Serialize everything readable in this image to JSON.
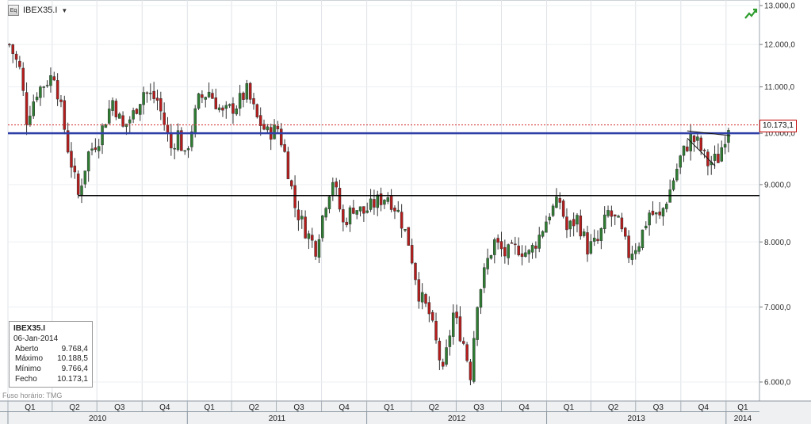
{
  "toolbar": {
    "icon": "chart-type-icon",
    "symbol": "IBEX35.I",
    "dropdown_glyph": "▼",
    "trend_icon": "trend-up-icon"
  },
  "info_box": {
    "title": "IBEX35.I",
    "date": "06-Jan-2014",
    "rows": [
      {
        "label": "Aberto",
        "value": "9.768,4"
      },
      {
        "label": "Máximo",
        "value": "10.188,5"
      },
      {
        "label": "Mínimo",
        "value": "9.766,4"
      },
      {
        "label": "Fecho",
        "value": "10.173,1"
      }
    ]
  },
  "timezone_label": "Fuso horário: TMG",
  "colors": {
    "up": "#2e7d32",
    "down": "#b71c1c",
    "resistance": "#2f3fa8",
    "support": "#000000",
    "last_price_line": "#d32f2f"
  },
  "chart_data": {
    "type": "candlestick",
    "symbol": "IBEX35.I",
    "interval": "weekly",
    "y_scale": "log",
    "ylim": [
      5900,
      13000
    ],
    "y_ticks": [
      {
        "value": 13000,
        "label": "13.000,0"
      },
      {
        "value": 12000,
        "label": "12.000,0"
      },
      {
        "value": 11000,
        "label": "11.000,0"
      },
      {
        "value": 10000,
        "label": "10.000,0"
      },
      {
        "value": 9000,
        "label": "9.000,0"
      },
      {
        "value": 8000,
        "label": "8.000,0"
      },
      {
        "value": 7000,
        "label": "7.000,0"
      },
      {
        "value": 6000,
        "label": "6.000,0"
      }
    ],
    "x_start": "2010-01-01",
    "x_end": "2014-03-10",
    "quarters": [
      {
        "label": "Q1",
        "date": "2010-01-01"
      },
      {
        "label": "Q2",
        "date": "2010-04-01"
      },
      {
        "label": "Q3",
        "date": "2010-07-01"
      },
      {
        "label": "Q4",
        "date": "2010-10-01"
      },
      {
        "label": "Q1",
        "date": "2011-01-01"
      },
      {
        "label": "Q2",
        "date": "2011-04-01"
      },
      {
        "label": "Q3",
        "date": "2011-07-01"
      },
      {
        "label": "Q4",
        "date": "2011-10-01"
      },
      {
        "label": "Q1",
        "date": "2012-01-01"
      },
      {
        "label": "Q2",
        "date": "2012-04-01"
      },
      {
        "label": "Q3",
        "date": "2012-07-01"
      },
      {
        "label": "Q4",
        "date": "2012-10-01"
      },
      {
        "label": "Q1",
        "date": "2013-01-01"
      },
      {
        "label": "Q2",
        "date": "2013-04-01"
      },
      {
        "label": "Q3",
        "date": "2013-07-01"
      },
      {
        "label": "Q4",
        "date": "2013-10-01"
      },
      {
        "label": "Q1",
        "date": "2014-01-01"
      }
    ],
    "years": [
      {
        "label": "2010",
        "start": "2010-01-01",
        "end": "2011-01-01"
      },
      {
        "label": "2011",
        "start": "2011-01-01",
        "end": "2012-01-01"
      },
      {
        "label": "2012",
        "start": "2012-01-01",
        "end": "2013-01-01"
      },
      {
        "label": "2013",
        "start": "2013-01-01",
        "end": "2014-01-01"
      },
      {
        "label": "2014",
        "start": "2014-01-01",
        "end": "2014-03-10"
      }
    ],
    "anchors": [
      [
        "2010-01-04",
        12000
      ],
      [
        "2010-01-25",
        11400
      ],
      [
        "2010-02-08",
        10300
      ],
      [
        "2010-03-01",
        10900
      ],
      [
        "2010-04-05",
        11300
      ],
      [
        "2010-05-03",
        9700
      ],
      [
        "2010-05-24",
        8800
      ],
      [
        "2010-06-14",
        9600
      ],
      [
        "2010-07-05",
        9900
      ],
      [
        "2010-08-02",
        10700
      ],
      [
        "2010-08-23",
        10100
      ],
      [
        "2010-09-13",
        10400
      ],
      [
        "2010-10-04",
        10900
      ],
      [
        "2010-11-01",
        10700
      ],
      [
        "2010-11-29",
        9700
      ],
      [
        "2010-12-13",
        10000
      ],
      [
        "2010-12-27",
        9500
      ],
      [
        "2011-01-24",
        10700
      ],
      [
        "2011-02-14",
        10900
      ],
      [
        "2011-03-14",
        10400
      ],
      [
        "2011-04-11",
        10600
      ],
      [
        "2011-05-02",
        10900
      ],
      [
        "2011-05-23",
        10300
      ],
      [
        "2011-06-13",
        10000
      ],
      [
        "2011-07-04",
        10100
      ],
      [
        "2011-07-18",
        9600
      ],
      [
        "2011-08-08",
        8600
      ],
      [
        "2011-08-29",
        8200
      ],
      [
        "2011-09-19",
        7900
      ],
      [
        "2011-10-10",
        8700
      ],
      [
        "2011-10-24",
        9100
      ],
      [
        "2011-11-14",
        8300
      ],
      [
        "2011-12-05",
        8600
      ],
      [
        "2011-12-26",
        8500
      ],
      [
        "2012-01-23",
        8700
      ],
      [
        "2012-02-13",
        8800
      ],
      [
        "2012-03-05",
        8500
      ],
      [
        "2012-03-26",
        8000
      ],
      [
        "2012-04-16",
        7200
      ],
      [
        "2012-05-07",
        6900
      ],
      [
        "2012-06-04",
        6100
      ],
      [
        "2012-06-25",
        6900
      ],
      [
        "2012-07-16",
        6500
      ],
      [
        "2012-07-30",
        6100
      ],
      [
        "2012-08-13",
        7100
      ],
      [
        "2012-09-03",
        7700
      ],
      [
        "2012-09-17",
        8000
      ],
      [
        "2012-10-08",
        7800
      ],
      [
        "2012-11-05",
        7900
      ],
      [
        "2012-11-26",
        7800
      ],
      [
        "2012-12-17",
        8100
      ],
      [
        "2013-01-07",
        8500
      ],
      [
        "2013-01-28",
        8700
      ],
      [
        "2013-02-11",
        8200
      ],
      [
        "2013-03-04",
        8400
      ],
      [
        "2013-03-25",
        7900
      ],
      [
        "2013-04-15",
        8000
      ],
      [
        "2013-05-06",
        8500
      ],
      [
        "2013-05-27",
        8300
      ],
      [
        "2013-06-17",
        7800
      ],
      [
        "2013-07-08",
        8000
      ],
      [
        "2013-07-29",
        8500
      ],
      [
        "2013-08-19",
        8400
      ],
      [
        "2013-09-09",
        8900
      ],
      [
        "2013-09-30",
        9500
      ],
      [
        "2013-10-21",
        9900
      ],
      [
        "2013-11-04",
        9800
      ],
      [
        "2013-11-25",
        9400
      ],
      [
        "2013-12-16",
        9500
      ],
      [
        "2014-01-06",
        10173
      ]
    ],
    "horizontal_lines": [
      {
        "kind": "resistance",
        "value": 10000,
        "from": "2010-01-01",
        "to": "2014-03-10"
      },
      {
        "kind": "support",
        "value": 8800,
        "from": "2010-05-24",
        "to": "2014-03-10"
      },
      {
        "kind": "last-price",
        "value": 10173.1,
        "from": "2010-01-01",
        "to": "2014-03-10"
      }
    ],
    "trend_lines": [
      {
        "from": [
          "2013-10-14",
          10050
        ],
        "to": [
          "2014-01-10",
          9950
        ]
      },
      {
        "from": [
          "2013-10-14",
          9900
        ],
        "to": [
          "2013-12-10",
          9350
        ]
      }
    ],
    "last_price_label": "10.173,1",
    "grid": true
  }
}
